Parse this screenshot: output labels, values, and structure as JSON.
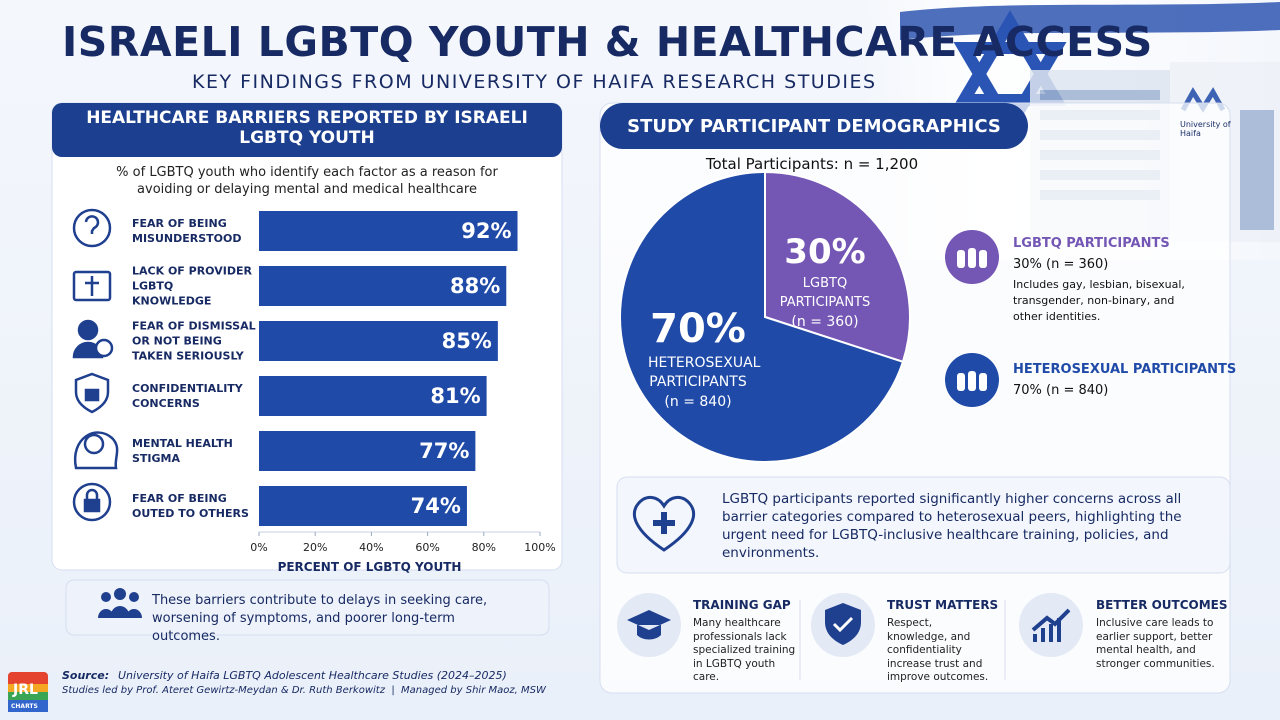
{
  "header": {
    "title": "ISRAELI LGBTQ YOUTH & HEALTHCARE ACCESS",
    "subtitle": "KEY FINDINGS FROM UNIVERSITY OF HAIFA RESEARCH STUDIES"
  },
  "building_sign": "University of Haifa",
  "chart_data": [
    {
      "type": "bar",
      "orientation": "horizontal",
      "title": "HEALTHCARE BARRIERS REPORTED BY ISRAELI LGBTQ YOUTH",
      "subtitle": "% of LGBTQ youth who identify each factor as a reason for avoiding or delaying mental and medical healthcare",
      "categories": [
        "FEAR OF BEING MISUNDERSTOOD",
        "LACK OF PROVIDER LGBTQ KNOWLEDGE",
        "FEAR OF DISMISSAL OR NOT BEING TAKEN SERIOUSLY",
        "CONFIDENTIALITY CONCERNS",
        "MENTAL HEALTH STIGMA",
        "FEAR OF BEING OUTED TO OTHERS"
      ],
      "values": [
        92,
        88,
        85,
        81,
        77,
        74
      ],
      "value_labels": [
        "92%",
        "88%",
        "85%",
        "81%",
        "77%",
        "74%"
      ],
      "color": "#1f4aa8",
      "xlim": [
        0,
        100
      ],
      "xticks": [
        {
          "value": 0,
          "label": "0%"
        },
        {
          "value": 20,
          "label": "20%"
        },
        {
          "value": 40,
          "label": "40%"
        },
        {
          "value": 60,
          "label": "60%"
        },
        {
          "value": 80,
          "label": "80%"
        },
        {
          "value": 100,
          "label": "100%"
        }
      ],
      "xlabel": "PERCENT OF LGBTQ YOUTH",
      "note": "These barriers contribute to delays in seeking care, worsening of symptoms, and poorer long-term outcomes."
    },
    {
      "type": "pie",
      "title": "STUDY PARTICIPANT DEMOGRAPHICS",
      "subtitle": "Total Participants: n = 1,200",
      "categories": [
        "LGBTQ PARTICIPANTS",
        "HETEROSEXUAL PARTICIPANTS"
      ],
      "values": [
        30,
        70
      ],
      "value_labels": [
        "30%",
        "70%"
      ],
      "slice_notes": [
        "(n = 360)",
        "(n = 840)"
      ],
      "colors": [
        "#7457b5",
        "#1f4aa8"
      ],
      "legend_details": [
        "30% (n = 360)",
        "70% (n = 840)"
      ],
      "legend_note": "Includes gay, lesbian, bisexual, transgender, non-binary, and other identities."
    }
  ],
  "insight": "LGBTQ participants reported significantly higher concerns across all barrier categories compared to heterosexual peers, highlighting the urgent need for LGBTQ-inclusive healthcare training, policies, and environments.",
  "cards": [
    {
      "title": "TRAINING GAP",
      "text": "Many healthcare professionals lack specialized training in LGBTQ youth care."
    },
    {
      "title": "TRUST MATTERS",
      "text": "Respect, knowledge, and confidentiality increase trust and improve outcomes."
    },
    {
      "title": "BETTER OUTCOMES",
      "text": "Inclusive care leads to earlier support, better mental health, and stronger communities."
    }
  ],
  "source": {
    "label": "Source:",
    "text": "University of Haifa LGBTQ Adolescent Healthcare Studies (2024–2025)",
    "credits": "Studies led by Prof. Ateret Gewirtz-Meydan & Dr. Ruth Berkowitz  |  Managed by Shir Maoz, MSW"
  },
  "logo": {
    "mark": "JRL",
    "text": "CHARTS"
  }
}
